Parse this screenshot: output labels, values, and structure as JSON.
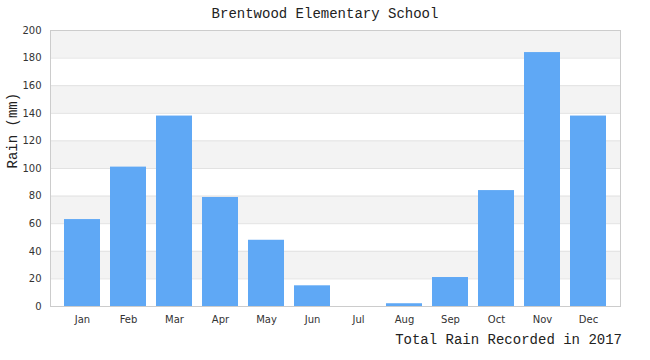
{
  "chart_data": {
    "type": "bar",
    "title": "Brentwood Elementary School",
    "caption": "Total Rain Recorded in 2017",
    "y_label": "Rain (mm)",
    "categories": [
      "Jan",
      "Feb",
      "Mar",
      "Apr",
      "May",
      "Jun",
      "Jul",
      "Aug",
      "Sep",
      "Oct",
      "Nov",
      "Dec"
    ],
    "values": [
      63,
      101,
      138,
      79,
      48,
      15,
      0,
      2,
      21,
      84,
      184,
      138
    ],
    "color": "#5fa8f5",
    "ylim": [
      0,
      200
    ],
    "yticks": [
      0,
      20,
      40,
      60,
      80,
      100,
      120,
      140,
      160,
      180,
      200
    ],
    "grid": true
  }
}
